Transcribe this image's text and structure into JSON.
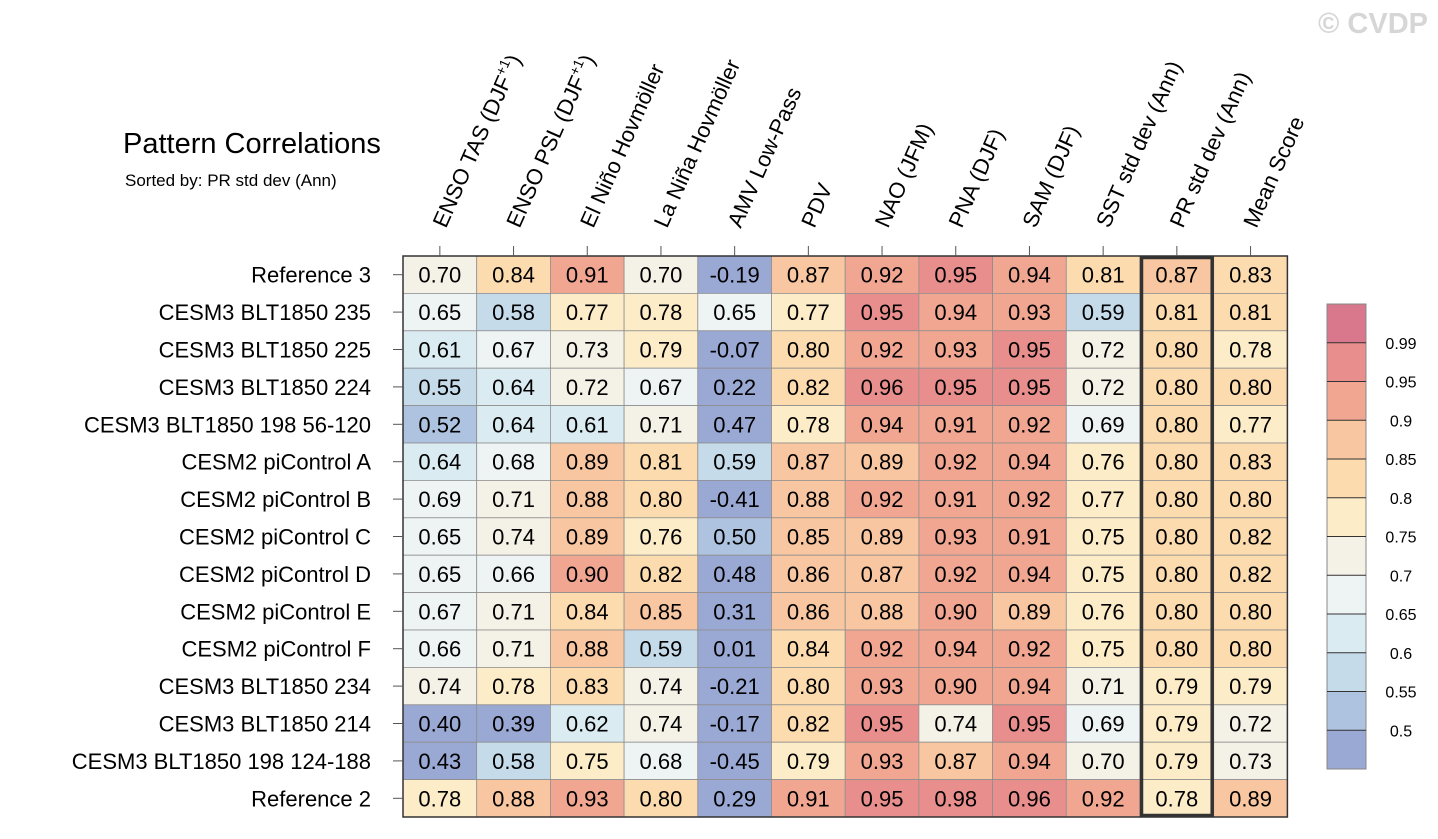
{
  "watermark": "© CVDP",
  "chart_data": {
    "type": "heatmap",
    "title": "Pattern Correlations",
    "subtitle": "Sorted by: PR std dev (Ann)",
    "highlighted_column": "PR std dev (Ann)",
    "columns": [
      "ENSO TAS (DJF+1)",
      "ENSO PSL (DJF+1)",
      "El Niño Hovmöller",
      "La Niña Hovmöller",
      "AMV Low-Pass",
      "PDV",
      "NAO (JFM)",
      "PNA (DJF)",
      "SAM (DJF)",
      "SST std dev (Ann)",
      "PR std dev (Ann)",
      "Mean Score"
    ],
    "rows": [
      {
        "name": "Reference 3",
        "values": [
          "0.70",
          "0.84",
          "0.91",
          "0.70",
          "-0.19",
          "0.87",
          "0.92",
          "0.95",
          "0.94",
          "0.81",
          "0.87",
          "0.83"
        ]
      },
      {
        "name": "CESM3 BLT1850 235",
        "values": [
          "0.65",
          "0.58",
          "0.77",
          "0.78",
          "0.65",
          "0.77",
          "0.95",
          "0.94",
          "0.93",
          "0.59",
          "0.81",
          "0.81"
        ]
      },
      {
        "name": "CESM3 BLT1850 225",
        "values": [
          "0.61",
          "0.67",
          "0.73",
          "0.79",
          "-0.07",
          "0.80",
          "0.92",
          "0.93",
          "0.95",
          "0.72",
          "0.80",
          "0.78"
        ]
      },
      {
        "name": "CESM3 BLT1850 224",
        "values": [
          "0.55",
          "0.64",
          "0.72",
          "0.67",
          "0.22",
          "0.82",
          "0.96",
          "0.95",
          "0.95",
          "0.72",
          "0.80",
          "0.80"
        ]
      },
      {
        "name": "CESM3 BLT1850 198 56-120",
        "values": [
          "0.52",
          "0.64",
          "0.61",
          "0.71",
          "0.47",
          "0.78",
          "0.94",
          "0.91",
          "0.92",
          "0.69",
          "0.80",
          "0.77"
        ]
      },
      {
        "name": "CESM2 piControl A",
        "values": [
          "0.64",
          "0.68",
          "0.89",
          "0.81",
          "0.59",
          "0.87",
          "0.89",
          "0.92",
          "0.94",
          "0.76",
          "0.80",
          "0.83"
        ]
      },
      {
        "name": "CESM2 piControl B",
        "values": [
          "0.69",
          "0.71",
          "0.88",
          "0.80",
          "-0.41",
          "0.88",
          "0.92",
          "0.91",
          "0.92",
          "0.77",
          "0.80",
          "0.80"
        ]
      },
      {
        "name": "CESM2 piControl C",
        "values": [
          "0.65",
          "0.74",
          "0.89",
          "0.76",
          "0.50",
          "0.85",
          "0.89",
          "0.93",
          "0.91",
          "0.75",
          "0.80",
          "0.82"
        ]
      },
      {
        "name": "CESM2 piControl D",
        "values": [
          "0.65",
          "0.66",
          "0.90",
          "0.82",
          "0.48",
          "0.86",
          "0.87",
          "0.92",
          "0.94",
          "0.75",
          "0.80",
          "0.82"
        ]
      },
      {
        "name": "CESM2 piControl E",
        "values": [
          "0.67",
          "0.71",
          "0.84",
          "0.85",
          "0.31",
          "0.86",
          "0.88",
          "0.90",
          "0.89",
          "0.76",
          "0.80",
          "0.80"
        ]
      },
      {
        "name": "CESM2 piControl F",
        "values": [
          "0.66",
          "0.71",
          "0.88",
          "0.59",
          "0.01",
          "0.84",
          "0.92",
          "0.94",
          "0.92",
          "0.75",
          "0.80",
          "0.80"
        ]
      },
      {
        "name": "CESM3 BLT1850 234",
        "values": [
          "0.74",
          "0.78",
          "0.83",
          "0.74",
          "-0.21",
          "0.80",
          "0.93",
          "0.90",
          "0.94",
          "0.71",
          "0.79",
          "0.79"
        ]
      },
      {
        "name": "CESM3 BLT1850 214",
        "values": [
          "0.40",
          "0.39",
          "0.62",
          "0.74",
          "-0.17",
          "0.82",
          "0.95",
          "0.74",
          "0.95",
          "0.69",
          "0.79",
          "0.72"
        ]
      },
      {
        "name": "CESM3 BLT1850 198 124-188",
        "values": [
          "0.43",
          "0.58",
          "0.75",
          "0.68",
          "-0.45",
          "0.79",
          "0.93",
          "0.87",
          "0.94",
          "0.70",
          "0.79",
          "0.73"
        ]
      },
      {
        "name": "Reference 2",
        "values": [
          "0.78",
          "0.88",
          "0.93",
          "0.80",
          "0.29",
          "0.91",
          "0.95",
          "0.98",
          "0.96",
          "0.92",
          "0.78",
          "0.89"
        ]
      }
    ],
    "colorbar": {
      "thresholds": [
        0.5,
        0.55,
        0.6,
        0.65,
        0.7,
        0.75,
        0.8,
        0.85,
        0.9,
        0.95,
        0.99
      ],
      "tick_labels": [
        "0.5",
        "0.55",
        "0.6",
        "0.65",
        "0.7",
        "0.75",
        "0.8",
        "0.85",
        "0.9",
        "0.95",
        "0.99"
      ],
      "colors": [
        "#9aa8d4",
        "#adc3e0",
        "#c5dbea",
        "#dbebf2",
        "#eef3f4",
        "#f4f1e6",
        "#fcecc8",
        "#fcdcaf",
        "#f8c6a0",
        "#f1a692",
        "#e88e8c",
        "#d9788c"
      ]
    }
  }
}
